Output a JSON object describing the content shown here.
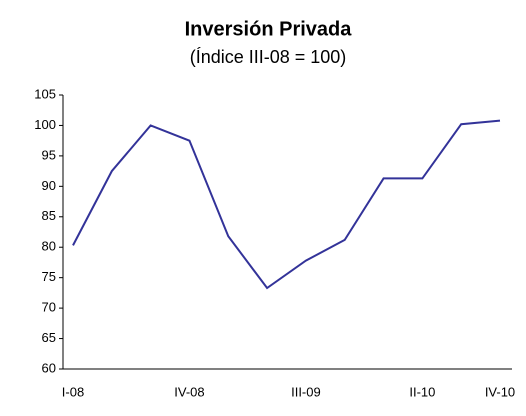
{
  "chart_data": {
    "type": "line",
    "title": "Inversión Privada",
    "subtitle": "(Índice III-08 = 100)",
    "categories": [
      "I-08",
      null,
      null,
      "IV-08",
      null,
      null,
      "III-09",
      null,
      null,
      "II-10",
      null,
      "IV-10"
    ],
    "series": [
      {
        "name": "Inversión Privada",
        "color": "#333399",
        "values": [
          80.3,
          92.5,
          100,
          97.5,
          81.8,
          73.3,
          77.8,
          81.2,
          91.3,
          91.3,
          100.2,
          100.8
        ]
      }
    ],
    "ylim": [
      60,
      105
    ],
    "yticks": [
      60,
      65,
      70,
      75,
      80,
      85,
      90,
      95,
      100,
      105
    ],
    "grid": false
  }
}
